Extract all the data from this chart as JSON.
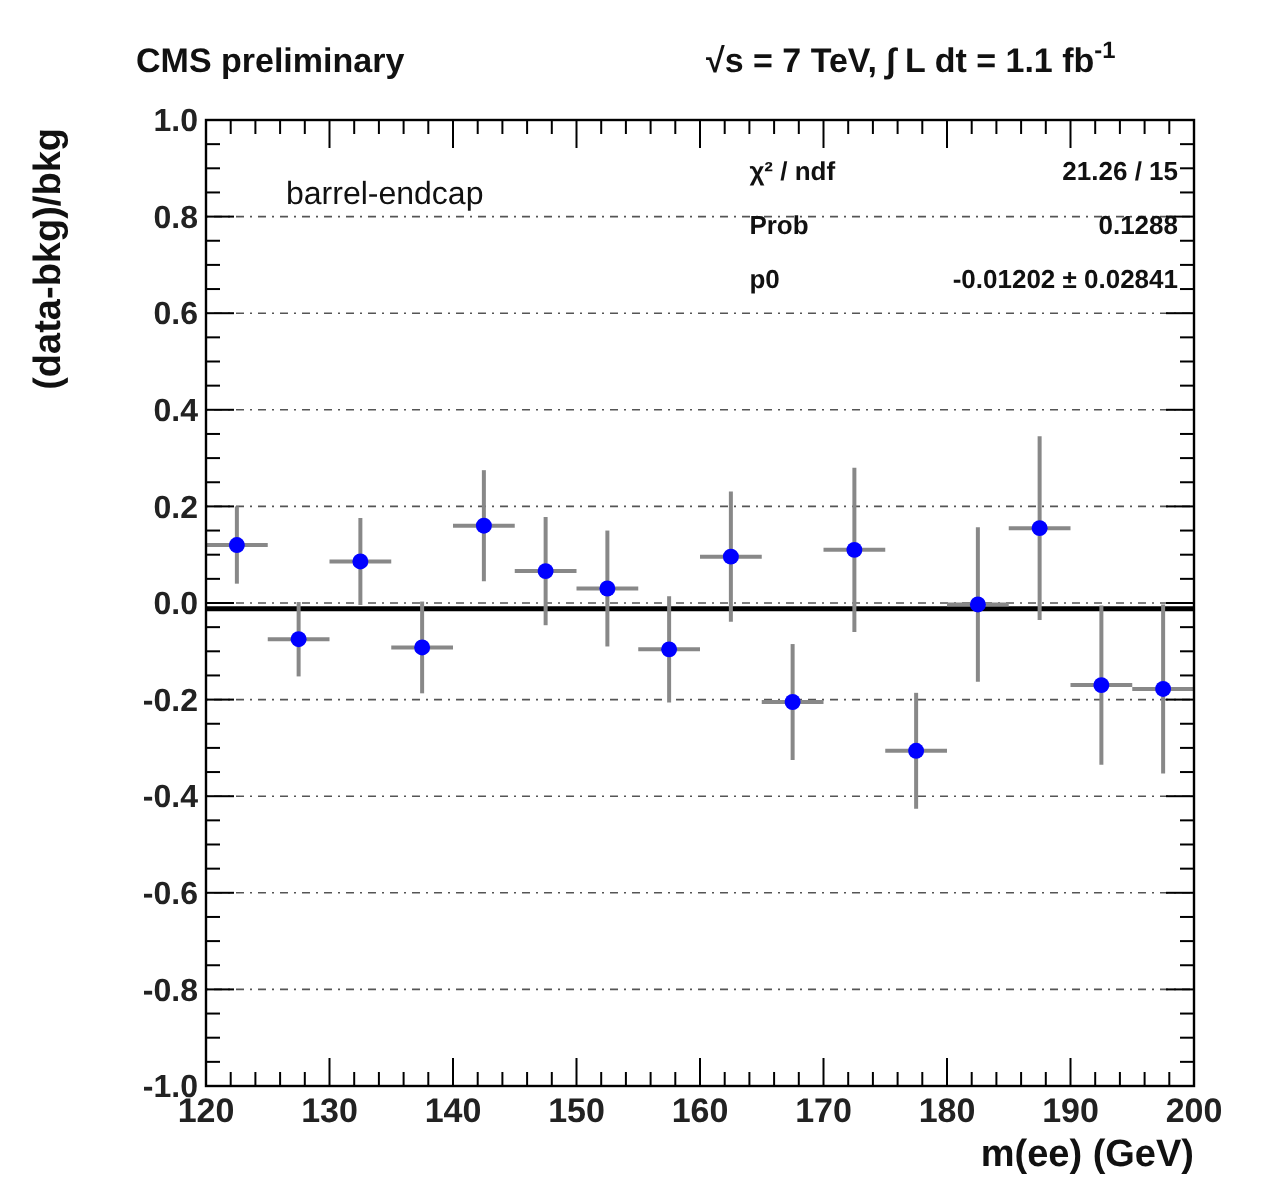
{
  "chart_data": {
    "type": "scatter",
    "title": "CMS preliminary",
    "subtitle": "√s = 7 TeV, ∫ L dt = 1.1 fb$^{-1}$",
    "xlabel": "m(ee) (GeV)",
    "ylabel": "(data-bkg)/bkg",
    "annotations": [
      "barrel-endcap",
      "χ² / ndf",
      "21.26 / 15",
      "Prob",
      "0.1288",
      "p0",
      "-0.01202 ± 0.02841"
    ],
    "xlim": [
      120,
      200
    ],
    "xticks": [
      120,
      130,
      140,
      150,
      160,
      170,
      180,
      190,
      200
    ],
    "ylim": [
      -1,
      1
    ],
    "yticks": [
      {
        "value": -1,
        "label": "-1.0"
      },
      {
        "value": -0.8,
        "label": "-0.8"
      },
      {
        "value": -0.6,
        "label": "-0.6"
      },
      {
        "value": -0.4,
        "label": "-0.4"
      },
      {
        "value": -0.2,
        "label": "-0.2"
      },
      {
        "value": 0,
        "label": "0.0"
      },
      {
        "value": 0.2,
        "label": "0.2"
      },
      {
        "value": 0.4,
        "label": "0.4"
      },
      {
        "value": 0.6,
        "label": "0.6"
      },
      {
        "value": 0.8,
        "label": "0.8"
      },
      {
        "value": 1,
        "label": "1.0"
      }
    ],
    "grid": "y",
    "series": [
      {
        "color": "#0000ff",
        "marker": "circle",
        "x": [
          122.5,
          127.5,
          132.5,
          137.5,
          142.5,
          147.5,
          152.5,
          157.5,
          162.5,
          167.5,
          172.5,
          177.5,
          182.5,
          187.5,
          192.5,
          197.5
        ],
        "values": [
          0.12,
          -0.075,
          0.086,
          -0.092,
          0.16,
          0.066,
          0.03,
          -0.096,
          0.096,
          -0.205,
          0.11,
          -0.306,
          -0.003,
          0.155,
          -0.17,
          -0.178
        ],
        "errors": [
          0.08,
          0.077,
          0.09,
          0.095,
          0.115,
          0.112,
          0.12,
          0.11,
          0.135,
          0.12,
          0.17,
          0.12,
          0.16,
          0.19,
          0.165,
          0.175
        ],
        "xerrors": [
          2.5,
          2.5,
          2.5,
          2.5,
          2.5,
          2.5,
          2.5,
          2.5,
          2.5,
          2.5,
          2.5,
          2.5,
          2.5,
          2.5,
          2.5,
          2.5
        ]
      },
      {
        "type": "line",
        "color": "#000000",
        "x": [
          120,
          200
        ],
        "values": [
          -0.012,
          -0.012
        ]
      }
    ]
  }
}
